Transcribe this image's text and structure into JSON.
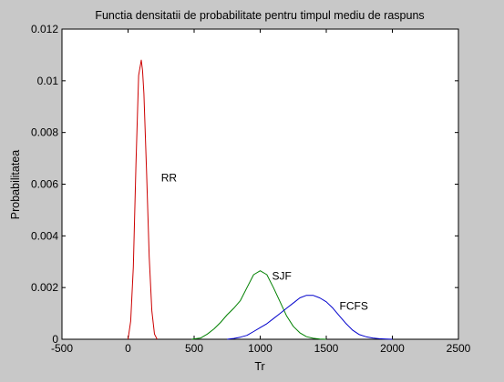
{
  "chart_data": {
    "type": "line",
    "title": "Functia densitatii de probabilitate pentru timpul mediu de raspuns",
    "xlabel": "Tr",
    "ylabel": "Probabilitatea",
    "xlim": [
      -500,
      2500
    ],
    "ylim": [
      0,
      0.012
    ],
    "xticks": [
      -500,
      0,
      500,
      1000,
      1500,
      2000,
      2500
    ],
    "xtick_labels": [
      "-500",
      "0",
      "500",
      "1000",
      "1500",
      "2000",
      "2500"
    ],
    "yticks": [
      0,
      0.002,
      0.004,
      0.006,
      0.008,
      0.01,
      0.012
    ],
    "ytick_labels": [
      "0",
      "0.002",
      "0.004",
      "0.006",
      "0.008",
      "0.01",
      "0.012"
    ],
    "grid": false,
    "background": "#c8c8c8",
    "plot_background": "#ffffff",
    "series": [
      {
        "name": "RR",
        "color": "#cc0000",
        "x": [
          0,
          20,
          40,
          60,
          80,
          100,
          110,
          120,
          140,
          160,
          180,
          200,
          220
        ],
        "y": [
          0.0,
          0.0007,
          0.0028,
          0.0068,
          0.0102,
          0.0108,
          0.0104,
          0.0095,
          0.0065,
          0.0032,
          0.0011,
          0.0002,
          0.0
        ]
      },
      {
        "name": "SJF",
        "color": "#008000",
        "x": [
          480,
          550,
          600,
          650,
          700,
          750,
          800,
          850,
          900,
          950,
          1000,
          1050,
          1100,
          1150,
          1200,
          1250,
          1300,
          1350,
          1400,
          1450,
          1500
        ],
        "y": [
          0.0,
          5e-05,
          0.0002,
          0.0004,
          0.00065,
          0.00095,
          0.0012,
          0.0015,
          0.002,
          0.0025,
          0.00265,
          0.0025,
          0.002,
          0.00145,
          0.0009,
          0.0005,
          0.00025,
          0.0001,
          4e-05,
          1e-05,
          0.0
        ]
      },
      {
        "name": "FCFS",
        "color": "#0000cc",
        "x": [
          750,
          800,
          850,
          900,
          950,
          1000,
          1050,
          1100,
          1150,
          1200,
          1250,
          1300,
          1350,
          1400,
          1450,
          1500,
          1550,
          1600,
          1650,
          1700,
          1750,
          1800,
          1850,
          1900,
          1950,
          2000
        ],
        "y": [
          0.0,
          3e-05,
          8e-05,
          0.00015,
          0.0003,
          0.00045,
          0.0006,
          0.0008,
          0.001,
          0.0012,
          0.0014,
          0.0016,
          0.0017,
          0.0017,
          0.0016,
          0.00145,
          0.0012,
          0.0009,
          0.0006,
          0.00035,
          0.00018,
          0.0001,
          5e-05,
          2e-05,
          1e-05,
          0.0
        ]
      }
    ],
    "annotations": [
      {
        "text": "RR",
        "x": 250,
        "y": 0.0061
      },
      {
        "text": "SJF",
        "x": 1090,
        "y": 0.0023
      },
      {
        "text": "FCFS",
        "x": 1600,
        "y": 0.00115
      }
    ]
  }
}
